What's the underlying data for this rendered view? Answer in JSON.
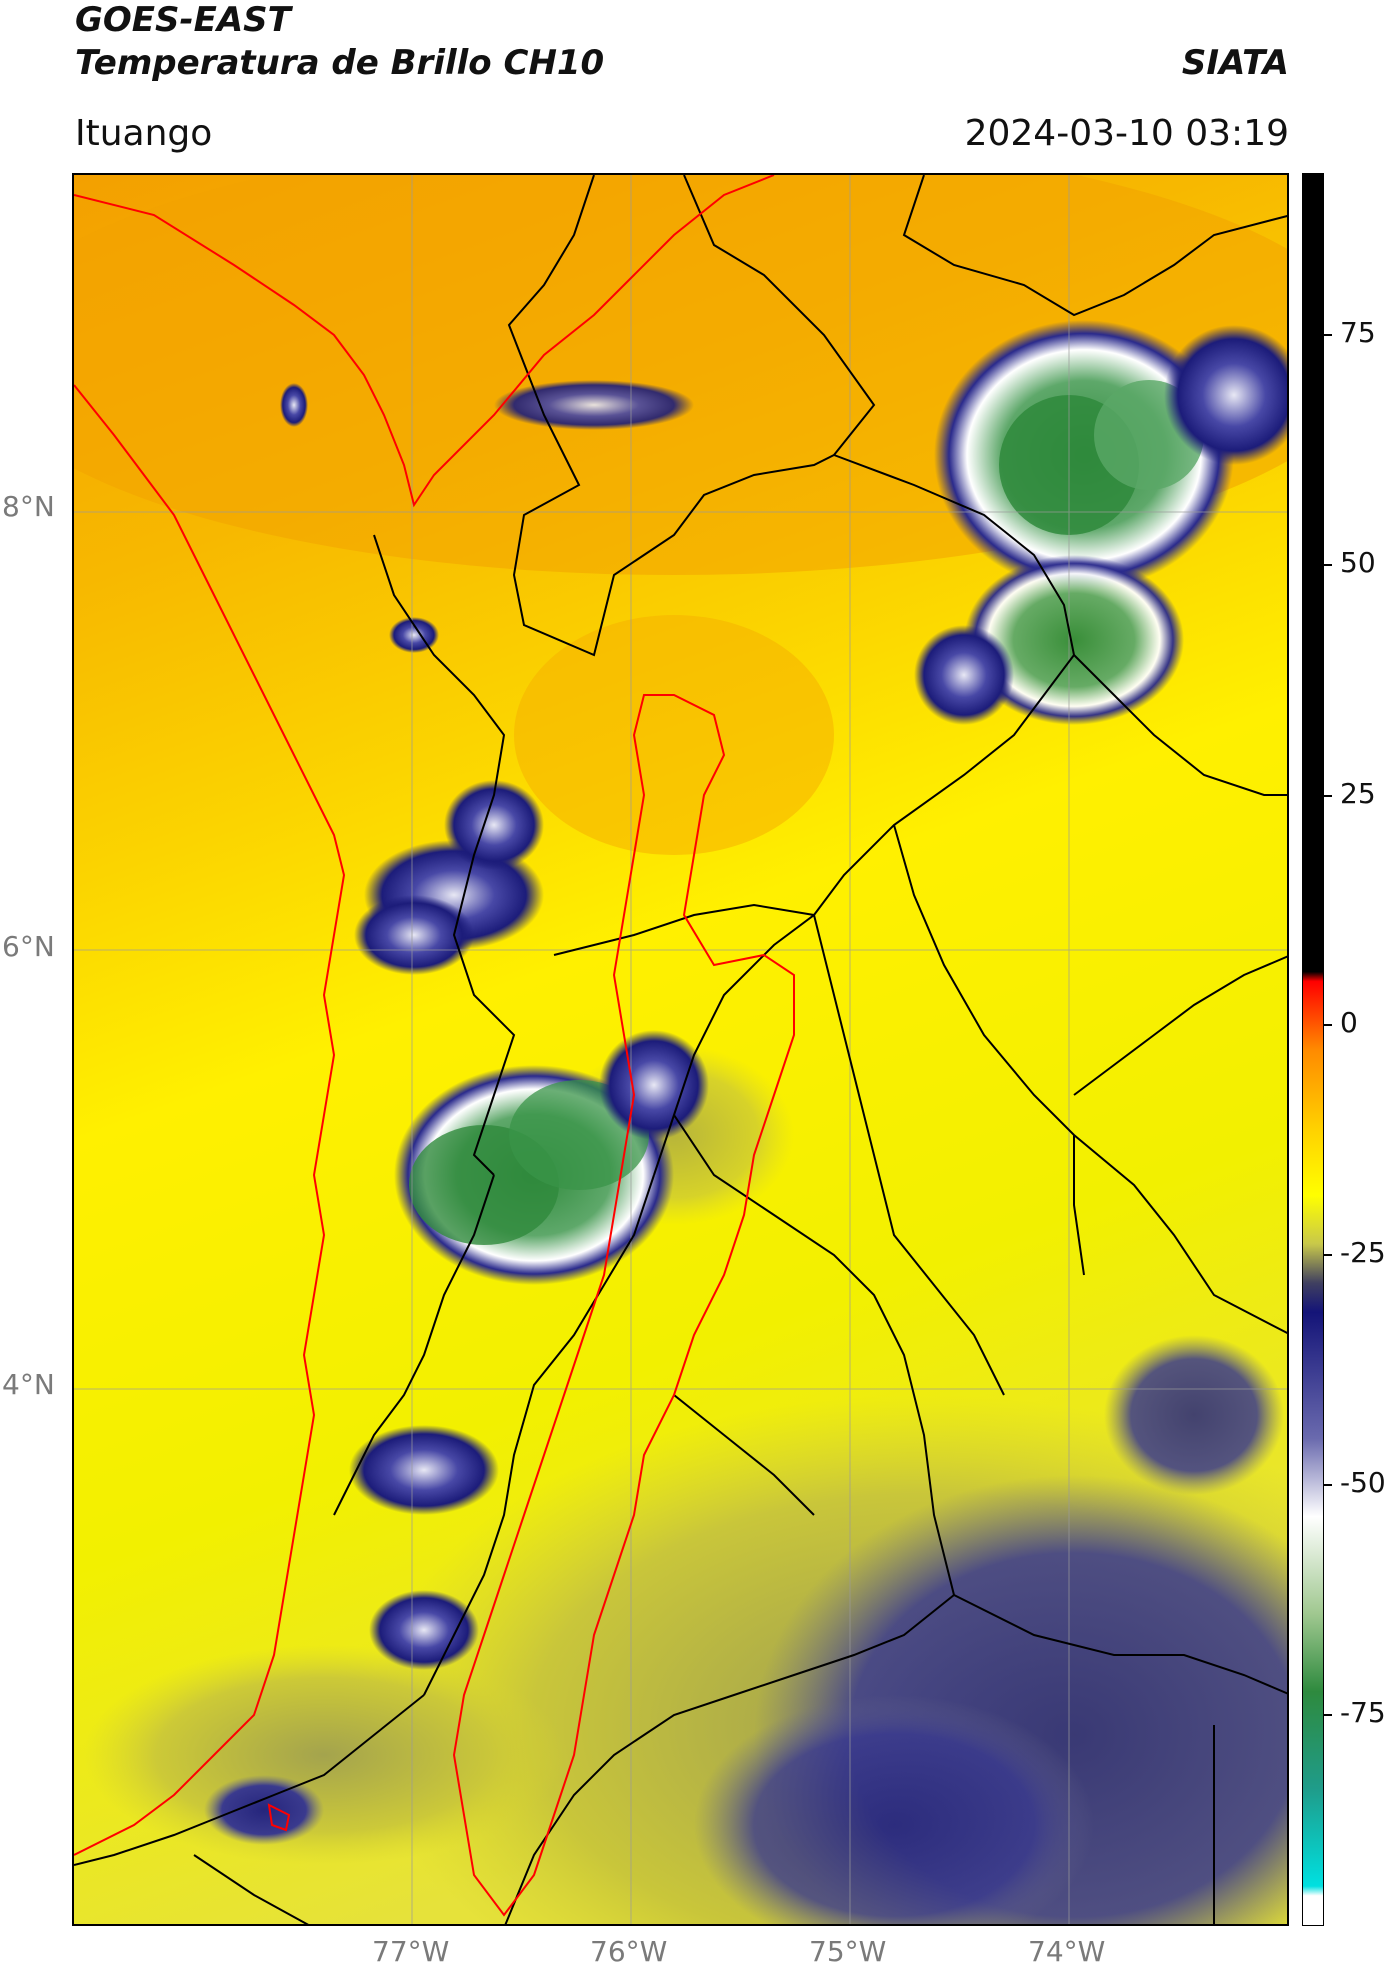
{
  "header": {
    "satellite": "GOES-EAST",
    "product": "Temperatura de Brillo CH10",
    "organization": "SIATA",
    "region": "Ituango",
    "datetime": "2024-03-10 03:19"
  },
  "map": {
    "lat_labels": [
      "8°N",
      "6°N",
      "4°N"
    ],
    "lon_labels": [
      "77°W",
      "76°W",
      "75°W",
      "74°W"
    ],
    "cloud_palette": {
      "background_warm": "#f5a300",
      "background_yellow": "#fff200",
      "dark_blue": "#1a1a7a",
      "mid_blue": "#4a4aa6",
      "white": "#ffffff",
      "green": "#2e8a3e",
      "olive": "#b8b84a",
      "border_black": "#000000",
      "boundary_red": "#ff0000"
    }
  },
  "colorbar": {
    "ticks": [
      "75",
      "50",
      "25",
      "0",
      "-25",
      "-50",
      "-75"
    ],
    "min": -90,
    "max": 90
  }
}
